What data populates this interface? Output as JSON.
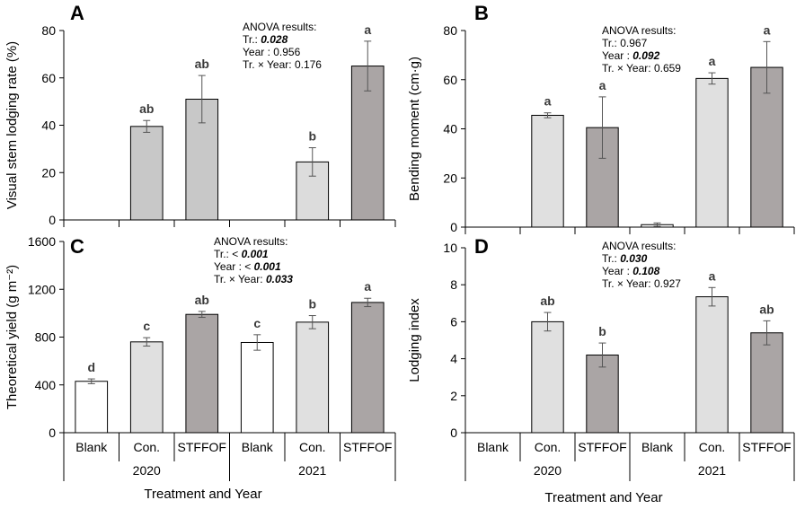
{
  "figure": {
    "x_axis_title": "Treatment and Year",
    "years": [
      "2020",
      "2021"
    ]
  },
  "chart_data": [
    {
      "panel": "A",
      "type": "bar",
      "ylabel": "Visual stem lodging rate (%)",
      "ylim": [
        0,
        80
      ],
      "yticks": [
        0,
        20,
        40,
        60,
        80
      ],
      "categories": [
        "Blank",
        "Con.",
        "STFFOF",
        "Blank",
        "Con.",
        "STFFOF"
      ],
      "years": [
        "2020",
        "2020",
        "2020",
        "2021",
        "2021",
        "2021"
      ],
      "values": [
        0,
        39.5,
        51,
        0,
        24.5,
        65
      ],
      "errors": [
        0,
        2.5,
        10,
        0,
        6,
        10.5
      ],
      "letters": [
        "",
        "ab",
        "ab",
        "",
        "b",
        "a"
      ],
      "fills": [
        "#ffffff",
        "#c8c8c8",
        "#c8c8c8",
        "#ffffff",
        "#dcdcdc",
        "#aaa5a5"
      ],
      "show_category_labels": false,
      "anova": [
        {
          "label": "ANOVA results:",
          "value": ""
        },
        {
          "label": "Tr.: ",
          "value": "0.028",
          "bold": true
        },
        {
          "label": " Year : ",
          "value": "0.956",
          "bold": false
        },
        {
          "label": "Tr. × Year: ",
          "value": "0.176",
          "bold": false
        }
      ]
    },
    {
      "panel": "B",
      "type": "bar",
      "ylabel": "Bending moment (cm·g)",
      "ylim": [
        0,
        80
      ],
      "yticks": [
        0,
        20,
        40,
        60,
        80
      ],
      "categories": [
        "Blank",
        "Con.",
        "STFFOF",
        "Blank",
        "Con.",
        "STFFOF"
      ],
      "years": [
        "2020",
        "2020",
        "2020",
        "2021",
        "2021",
        "2021"
      ],
      "values": [
        0,
        45.5,
        40.5,
        1,
        60.5,
        65
      ],
      "errors": [
        0,
        1,
        12.5,
        0.7,
        2.3,
        10.5
      ],
      "letters": [
        "",
        "a",
        "a",
        "",
        "a",
        "a"
      ],
      "fills": [
        "#ffffff",
        "#e0e0e0",
        "#aaa5a5",
        "#ffffff",
        "#e0e0e0",
        "#aaa5a5"
      ],
      "show_category_labels": false,
      "anova": [
        {
          "label": "ANOVA results:",
          "value": ""
        },
        {
          "label": "Tr.: ",
          "value": "0.967",
          "bold": false
        },
        {
          "label": " Year : ",
          "value": "0.092",
          "bold": true
        },
        {
          "label": "Tr. × Year: ",
          "value": "0.659",
          "bold": false
        }
      ]
    },
    {
      "panel": "C",
      "type": "bar",
      "ylabel": "Theoretical yield (g m⁻²)",
      "ylim": [
        0,
        1600
      ],
      "yticks": [
        0,
        400,
        800,
        1200,
        1600
      ],
      "categories": [
        "Blank",
        "Con.",
        "STFFOF",
        "Blank",
        "Con.",
        "STFFOF"
      ],
      "years": [
        "2020",
        "2020",
        "2020",
        "2021",
        "2021",
        "2021"
      ],
      "values": [
        430,
        760,
        990,
        755,
        925,
        1090
      ],
      "errors": [
        20,
        35,
        25,
        65,
        55,
        35
      ],
      "letters": [
        "d",
        "c",
        "ab",
        "c",
        "b",
        "a"
      ],
      "fills": [
        "#ffffff",
        "#e0e0e0",
        "#aaa5a5",
        "#ffffff",
        "#e0e0e0",
        "#aaa5a5"
      ],
      "show_category_labels": true,
      "anova": [
        {
          "label": "ANOVA results:",
          "value": ""
        },
        {
          "label": "Tr.:  < ",
          "value": "0.001",
          "bold": true
        },
        {
          "label": " Year :  < ",
          "value": "0.001",
          "bold": true
        },
        {
          "label": "Tr. × Year: ",
          "value": "0.033",
          "bold": true
        }
      ]
    },
    {
      "panel": "D",
      "type": "bar",
      "ylabel": "Lodging index",
      "ylim": [
        0,
        10
      ],
      "yticks": [
        0,
        2,
        4,
        6,
        8,
        10
      ],
      "categories": [
        "Blank",
        "Con.",
        "STFFOF",
        "Blank",
        "Con.",
        "STFFOF"
      ],
      "years": [
        "2020",
        "2020",
        "2020",
        "2021",
        "2021",
        "2021"
      ],
      "values": [
        0,
        6,
        4.2,
        0,
        7.35,
        5.4
      ],
      "errors": [
        0,
        0.5,
        0.65,
        0,
        0.5,
        0.65
      ],
      "letters": [
        "",
        "ab",
        "b",
        "",
        "a",
        "ab"
      ],
      "fills": [
        "#ffffff",
        "#e0e0e0",
        "#aaa5a5",
        "#ffffff",
        "#e0e0e0",
        "#aaa5a5"
      ],
      "show_category_labels": true,
      "anova": [
        {
          "label": "ANOVA results:",
          "value": ""
        },
        {
          "label": "Tr.: ",
          "value": "0.030",
          "bold": true
        },
        {
          "label": " Year : ",
          "value": "0.108",
          "bold": true
        },
        {
          "label": "Tr. × Year: ",
          "value": "0.927",
          "bold": false
        }
      ]
    }
  ]
}
